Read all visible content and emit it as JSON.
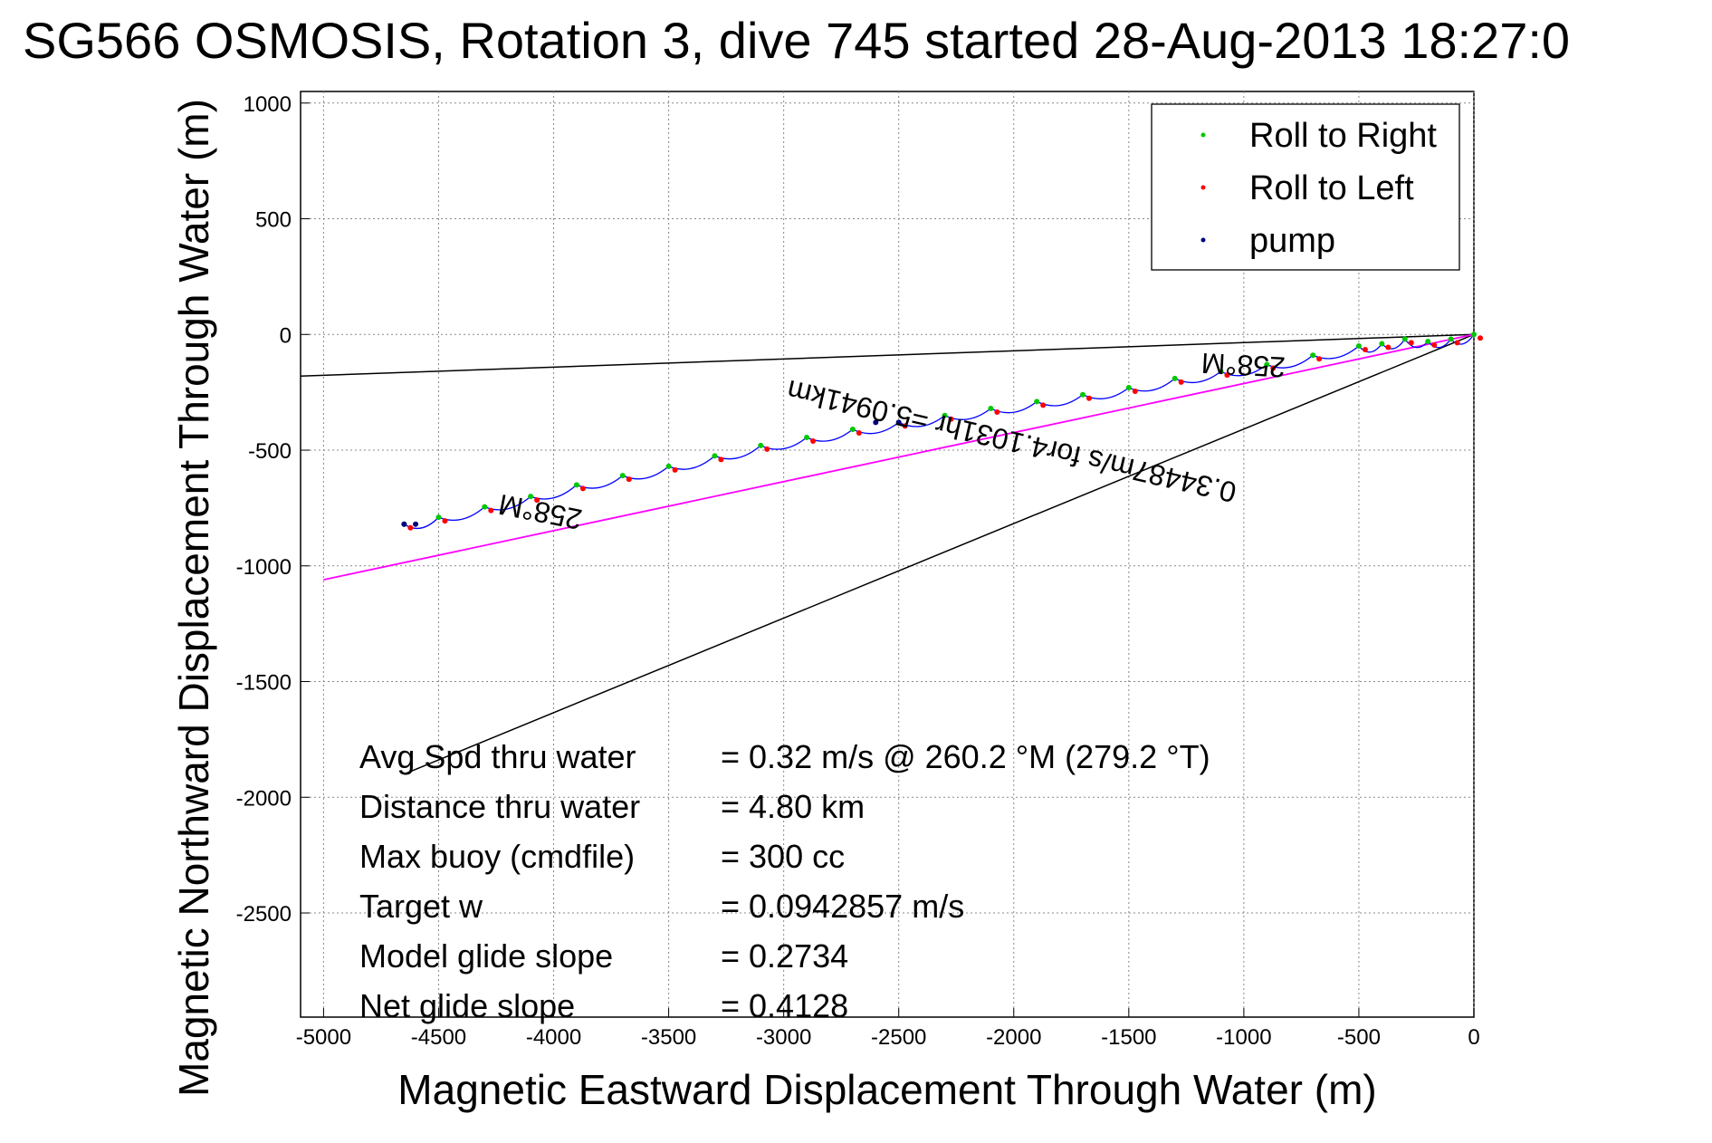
{
  "chart_data": {
    "type": "scatter",
    "title": "SG566 OSMOSIS, Rotation 3, dive 745 started 28-Aug-2013 18:27:0",
    "xlabel": "Magnetic Eastward Displacement Through Water (m)",
    "ylabel": "Magnetic Northward Displacement Through Water (m)",
    "xlim": [
      -5100,
      0
    ],
    "ylim": [
      -2950,
      1050
    ],
    "xticks": [
      -5000,
      -4500,
      -4000,
      -3500,
      -3000,
      -2500,
      -2000,
      -1500,
      -1000,
      -500,
      0
    ],
    "yticks": [
      1000,
      500,
      0,
      -500,
      -1000,
      -1500,
      -2000,
      -2500
    ],
    "xtick_labels": [
      "-5000",
      "-4500",
      "-4000",
      "-3500",
      "-3000",
      "-2500",
      "-2000",
      "-1500",
      "-1000",
      "-500",
      "0"
    ],
    "ytick_labels": [
      "1000",
      "500",
      "0",
      "-500",
      "-1000",
      "-1500",
      "-2000",
      "-2500"
    ],
    "grid": true,
    "legend_position": "top-right",
    "colors": {
      "track": "#0000ff",
      "roll_right": "#00c800",
      "roll_left": "#ff0000",
      "pump": "#000080",
      "reference_lines": "#000000",
      "fit_line": "#ff00ff"
    },
    "series": [
      {
        "name": "Roll to Right",
        "color": "#00c800"
      },
      {
        "name": "Roll to Left",
        "color": "#ff0000"
      },
      {
        "name": "pump",
        "color": "#000080"
      }
    ],
    "track": {
      "x": [
        0,
        -100,
        -200,
        -300,
        -400,
        -500,
        -700,
        -900,
        -1100,
        -1300,
        -1500,
        -1700,
        -1900,
        -2100,
        -2300,
        -2500,
        -2700,
        -2900,
        -3100,
        -3300,
        -3500,
        -3700,
        -3900,
        -4100,
        -4300,
        -4500,
        -4650
      ],
      "y": [
        0,
        -20,
        -30,
        -20,
        -40,
        -50,
        -90,
        -130,
        -160,
        -190,
        -230,
        -260,
        -290,
        -320,
        -350,
        -380,
        -410,
        -445,
        -480,
        -525,
        -570,
        -610,
        -650,
        -700,
        -745,
        -790,
        -820
      ]
    },
    "reference_lines": [
      {
        "x": [
          0,
          -5100
        ],
        "y": [
          0,
          -180
        ]
      },
      {
        "x": [
          0,
          -4650
        ],
        "y": [
          0,
          -1900
        ]
      }
    ],
    "fit_line": {
      "x": [
        0,
        -5000
      ],
      "y": [
        0,
        -1060
      ]
    },
    "annotations": [
      {
        "text": "258°M",
        "x": -1000,
        "y": -90,
        "rotation_deg": 183
      },
      {
        "text": "258°M",
        "x": -4050,
        "y": -725,
        "rotation_deg": 191
      },
      {
        "text": "0.34487m/s for4.1031hr =5.0941km",
        "x": -2000,
        "y": -420,
        "rotation_deg": 193
      }
    ],
    "stats": [
      {
        "label": "Avg Spd thru water",
        "value": "=  0.32 m/s @ 260.2 °M (279.2 °T)"
      },
      {
        "label": "Distance thru water",
        "value": "=  4.80 km"
      },
      {
        "label": "Max buoy (cmdfile)",
        "value": "= 300 cc"
      },
      {
        "label": "Target w",
        "value": "= 0.0942857 m/s"
      },
      {
        "label": "Model glide slope",
        "value": "= 0.2734"
      },
      {
        "label": "Net glide slope",
        "value": "= 0.4128"
      }
    ]
  }
}
